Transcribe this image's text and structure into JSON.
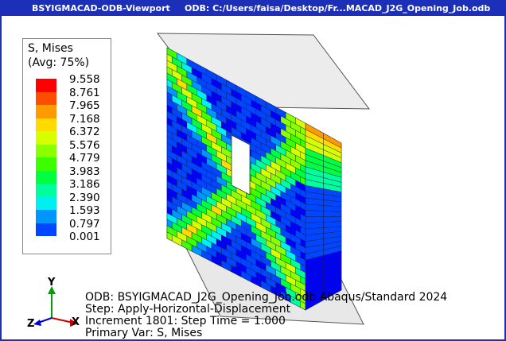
{
  "window": {
    "viewport_name": "BSYIGMACAD-ODB-Viewport",
    "odb_title": "ODB: C:/Users/faisa/Desktop/Fr...MACAD_J2G_Opening_Job.odb"
  },
  "legend": {
    "title_line1": "S, Mises",
    "title_line2": "(Avg: 75%)",
    "values": [
      "9.558",
      "8.761",
      "7.965",
      "7.168",
      "6.372",
      "5.576",
      "4.779",
      "3.983",
      "3.186",
      "2.390",
      "1.593",
      "0.797",
      "0.001"
    ],
    "colors": [
      "#ff0000",
      "#ff4d00",
      "#ff9a00",
      "#ffdb00",
      "#d6ff00",
      "#8cff00",
      "#3cff00",
      "#00ff40",
      "#00ff9c",
      "#00f0f0",
      "#0096ff",
      "#0046ff",
      "#0000ff"
    ]
  },
  "info": {
    "line1": "ODB: BSYIGMACAD_J2G_Opening_Job.odb     Abaqus/Standard 2024",
    "line2": "Step: Apply-Horizontal-Displacement",
    "line3": "Increment    1801: Step Time =      1.000",
    "line4": "Primary Var: S, Mises"
  },
  "triad": {
    "x": "X",
    "y": "Y",
    "z": "Z"
  }
}
